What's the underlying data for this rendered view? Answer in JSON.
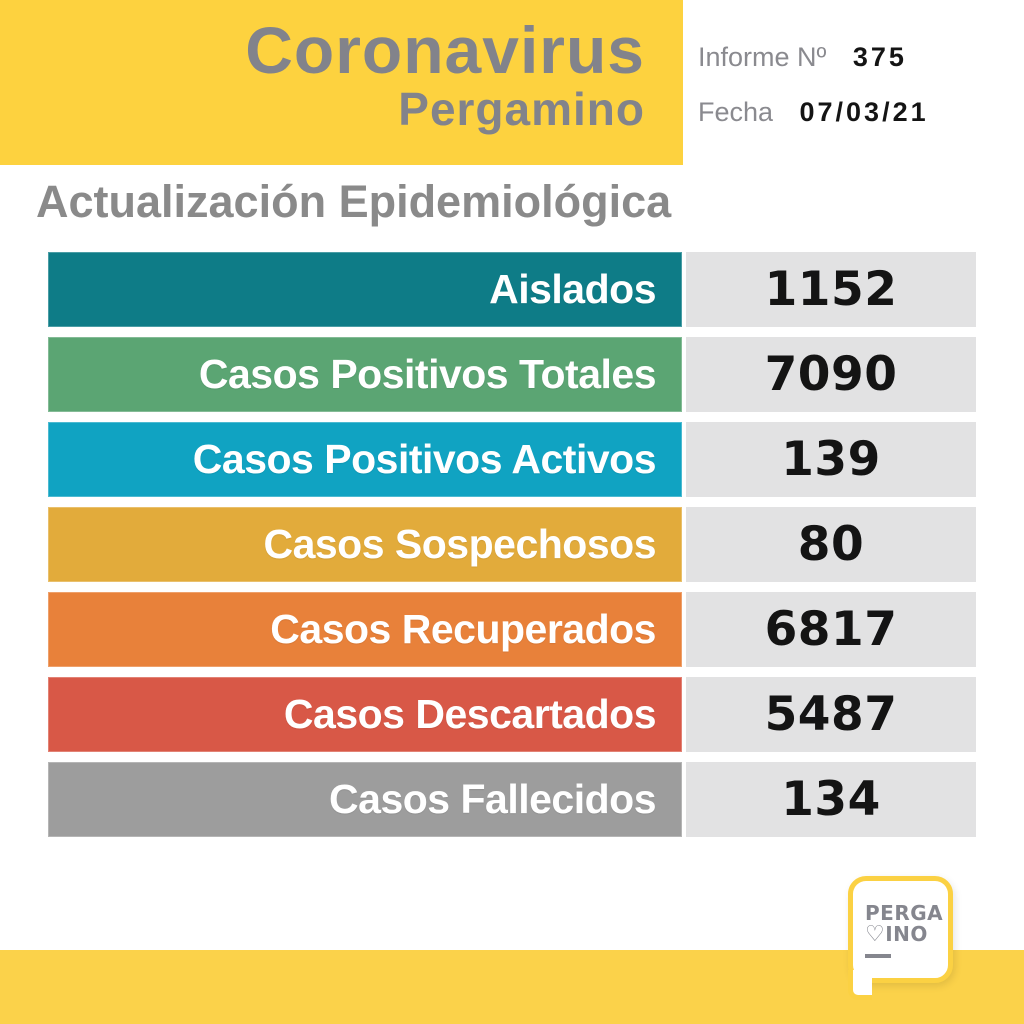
{
  "header": {
    "title_line1": "Coronavirus",
    "title_line2": "Pergamino",
    "report_label": "Informe Nº",
    "report_number": "375",
    "date_label": "Fecha",
    "date_value": "07/03/21"
  },
  "page_title": "Actualización Epidemiológica",
  "table": {
    "rows": [
      {
        "label": "Aislados",
        "value": "1152",
        "color": "#0e7c87"
      },
      {
        "label": "Casos Positivos Totales",
        "value": "7090",
        "color": "#5ba573"
      },
      {
        "label": "Casos Positivos Activos",
        "value": "139",
        "color": "#10a3c2"
      },
      {
        "label": "Casos Sospechosos",
        "value": "80",
        "color": "#e2ab3b"
      },
      {
        "label": "Casos Recuperados",
        "value": "6817",
        "color": "#e8813a"
      },
      {
        "label": "Casos Descartados",
        "value": "5487",
        "color": "#d85847"
      },
      {
        "label": "Casos Fallecidos",
        "value": "134",
        "color": "#9d9d9d"
      }
    ]
  },
  "logo": {
    "line1": "PERGA",
    "heart": "♡",
    "line2_rest": "INO"
  },
  "colors": {
    "accent_yellow": "#fdd23f",
    "footer_yellow": "#fbd24a",
    "title_gray": "#82838b",
    "value_cell_bg": "#e2e2e3",
    "number_black": "#141414"
  },
  "chart_data": {
    "type": "table",
    "title": "Actualización Epidemiológica",
    "subtitle": "Coronavirus Pergamino — Informe Nº 375 — Fecha 07/03/21",
    "categories": [
      "Aislados",
      "Casos Positivos Totales",
      "Casos Positivos Activos",
      "Casos Sospechosos",
      "Casos Recuperados",
      "Casos Descartados",
      "Casos Fallecidos"
    ],
    "values": [
      1152,
      7090,
      139,
      80,
      6817,
      5487,
      134
    ],
    "row_colors": [
      "#0e7c87",
      "#5ba573",
      "#10a3c2",
      "#e2ab3b",
      "#e8813a",
      "#d85847",
      "#9d9d9d"
    ]
  }
}
